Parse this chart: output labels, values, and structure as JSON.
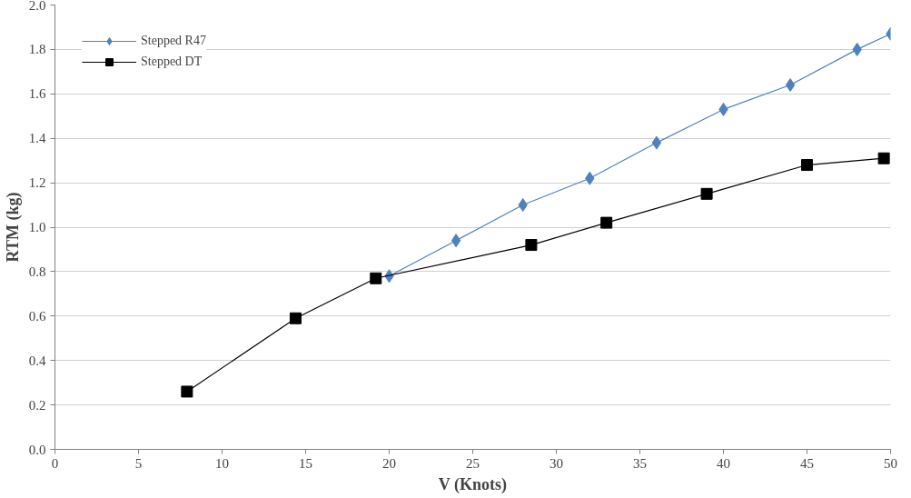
{
  "chart_data": {
    "type": "line",
    "xlabel": "V (Knots)",
    "ylabel": "RTM (kg)",
    "xlim": [
      0,
      50
    ],
    "xticks": [
      0,
      5,
      10,
      15,
      20,
      25,
      30,
      35,
      40,
      45,
      50
    ],
    "ylim": [
      0,
      2.0
    ],
    "yticks": [
      {
        "value": 0,
        "label": "0.0"
      },
      {
        "value": 0.2,
        "label": "0.2"
      },
      {
        "value": 0.4,
        "label": "0.4"
      },
      {
        "value": 0.6,
        "label": "0.6"
      },
      {
        "value": 0.8,
        "label": "0.8"
      },
      {
        "value": 1.0,
        "label": "1.0"
      },
      {
        "value": 1.2,
        "label": "1.2"
      },
      {
        "value": 1.4,
        "label": "1.4"
      },
      {
        "value": 1.6,
        "label": "1.6"
      },
      {
        "value": 1.8,
        "label": "1.8"
      },
      {
        "value": 2.0,
        "label": "2.0"
      }
    ],
    "grid": "y",
    "legend": "top left",
    "series": [
      {
        "name": "Stepped R47",
        "color": "#4f81bd",
        "marker": "diamond",
        "x": [
          20,
          24,
          28,
          32,
          36,
          40,
          44,
          48,
          50
        ],
        "values": [
          0.78,
          0.94,
          1.1,
          1.22,
          1.38,
          1.53,
          1.64,
          1.8,
          1.87
        ]
      },
      {
        "name": "Stepped DT",
        "color": "#000000",
        "marker": "square",
        "x": [
          7.9,
          14.4,
          19.2,
          28.5,
          33.0,
          39.0,
          45.0,
          49.6
        ],
        "values": [
          0.26,
          0.59,
          0.77,
          0.92,
          1.02,
          1.15,
          1.28,
          1.31
        ]
      }
    ]
  }
}
